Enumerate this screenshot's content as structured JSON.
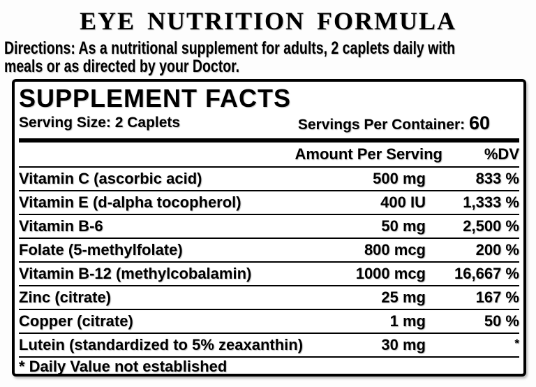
{
  "colors": {
    "ink": "#000000",
    "panel_border": "#000000",
    "background": "#ffffff"
  },
  "header": {
    "title": "EYE NUTRITION FORMULA",
    "directions_line1": "Directions: As a nutritional supplement for adults, 2 caplets daily with",
    "directions_line2": "meals or as directed by your Doctor."
  },
  "panel": {
    "title": "SUPPLEMENT FACTS",
    "serving_size": "Serving Size: 2 Caplets",
    "servings_per_container_label": "Servings Per Container: ",
    "servings_per_container_value": "60",
    "columns": {
      "amount": "Amount Per Serving",
      "dv": "%DV"
    },
    "rows": [
      {
        "name": "Vitamin C (ascorbic acid)",
        "amount": "500 mg",
        "dv": "833 %"
      },
      {
        "name": "Vitamin E (d-alpha tocopherol)",
        "amount": "400 IU",
        "dv": "1,333 %"
      },
      {
        "name": "Vitamin B-6",
        "amount": "50 mg",
        "dv": "2,500 %"
      },
      {
        "name": "Folate (5-methylfolate)",
        "amount": "800 mcg",
        "dv": "200 %"
      },
      {
        "name": "Vitamin B-12 (methylcobalamin)",
        "amount": "1000 mcg",
        "dv": "16,667 %"
      },
      {
        "name": "Zinc (citrate)",
        "amount": "25 mg",
        "dv": "167 %"
      },
      {
        "name": "Copper (citrate)",
        "amount": "1 mg",
        "dv": "50 %"
      },
      {
        "name": "Lutein (standardized to 5% zeaxanthin)",
        "amount": "30 mg",
        "dv": "*"
      }
    ],
    "footnote": "* Daily Value not established"
  }
}
